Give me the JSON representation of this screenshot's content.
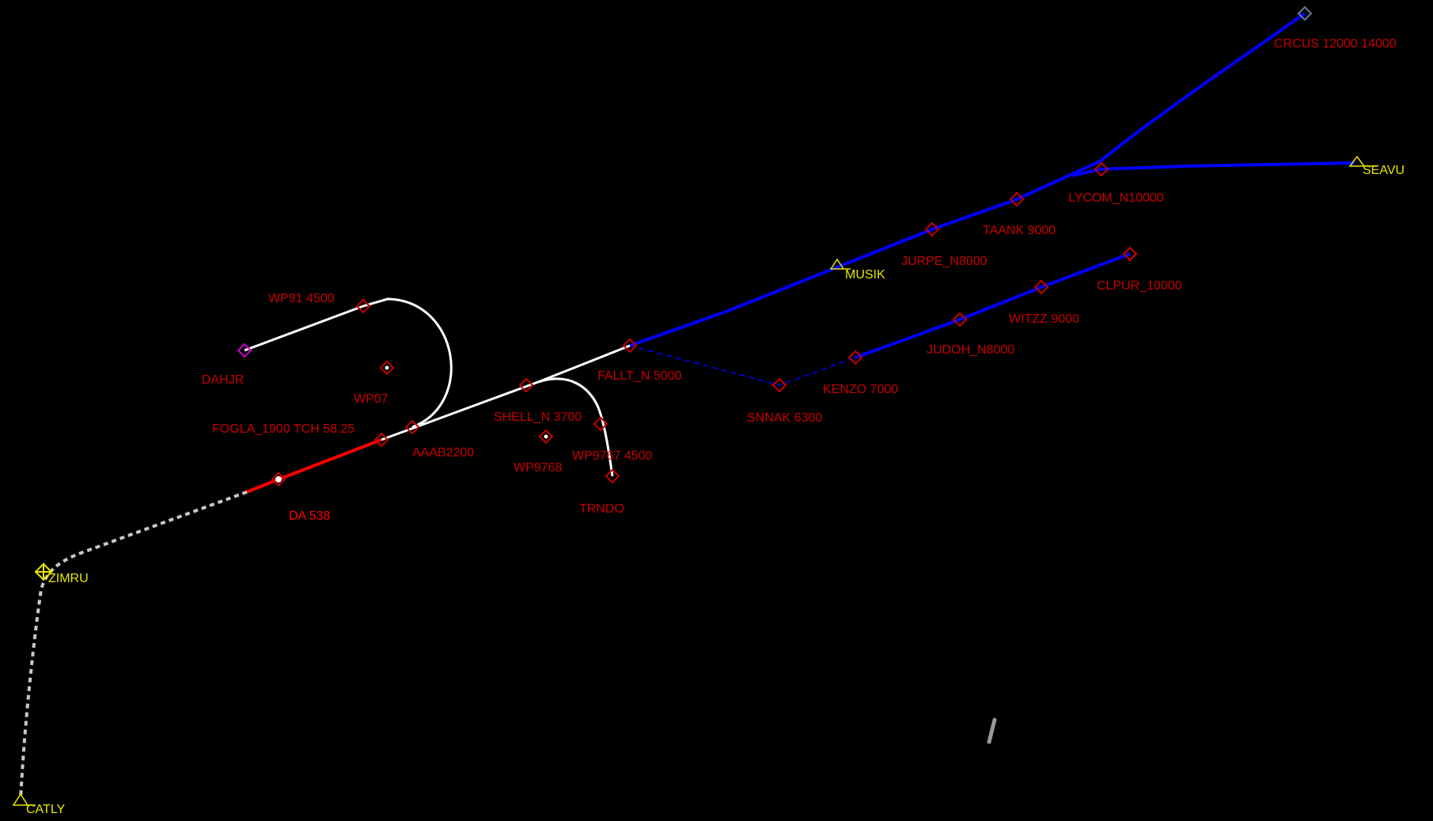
{
  "colors": {
    "background": "#000000",
    "waypoint_label": "#c80000",
    "fix_label": "#e6e600",
    "route_blue": "#0000ff",
    "route_white": "#ffffff",
    "route_red": "#ff0000",
    "route_gray": "#c8c8c8"
  },
  "waypoints": [
    {
      "id": "crcus",
      "label": "CRCUS 12000 14000",
      "kind": "waypoint"
    },
    {
      "id": "seavu",
      "label": "SEAVU",
      "kind": "fix"
    },
    {
      "id": "lycom",
      "label": "LYCOM_N10000",
      "kind": "waypoint"
    },
    {
      "id": "taank",
      "label": "TAANK 9000",
      "kind": "waypoint"
    },
    {
      "id": "jurpe",
      "label": "JURPE_N8000",
      "kind": "waypoint"
    },
    {
      "id": "musik",
      "label": "MUSIK",
      "kind": "fix"
    },
    {
      "id": "clpur",
      "label": "CLPUR_10000",
      "kind": "waypoint"
    },
    {
      "id": "witzz",
      "label": "WITZZ 9000",
      "kind": "waypoint"
    },
    {
      "id": "judoh",
      "label": "JUDOH_N8000",
      "kind": "waypoint"
    },
    {
      "id": "kenzo",
      "label": "KENZO 7000",
      "kind": "waypoint"
    },
    {
      "id": "snnak",
      "label": "SNNAK 6300",
      "kind": "waypoint"
    },
    {
      "id": "fallt",
      "label": "FALLT_N 5000",
      "kind": "waypoint"
    },
    {
      "id": "wp91",
      "label": "WP91 4500",
      "kind": "waypoint"
    },
    {
      "id": "dahjr",
      "label": "DAHJR",
      "kind": "waypoint"
    },
    {
      "id": "wp07",
      "label": "WP07",
      "kind": "waypoint"
    },
    {
      "id": "fogla",
      "label": "FOGLA_1900 TCH 58.25",
      "kind": "waypoint"
    },
    {
      "id": "aaab",
      "label": "AAAB2200",
      "kind": "waypoint"
    },
    {
      "id": "shell",
      "label": "SHELL_N 3700",
      "kind": "waypoint"
    },
    {
      "id": "wp9767",
      "label": "WP9767 4500",
      "kind": "waypoint"
    },
    {
      "id": "wp9768",
      "label": "WP9768",
      "kind": "waypoint"
    },
    {
      "id": "trndo",
      "label": "TRNDO",
      "kind": "waypoint"
    },
    {
      "id": "da",
      "label": "DA 538",
      "kind": "waypoint"
    },
    {
      "id": "zimru",
      "label": "ZIMRU",
      "kind": "fix"
    },
    {
      "id": "catly",
      "label": "CATLY",
      "kind": "fix"
    }
  ]
}
